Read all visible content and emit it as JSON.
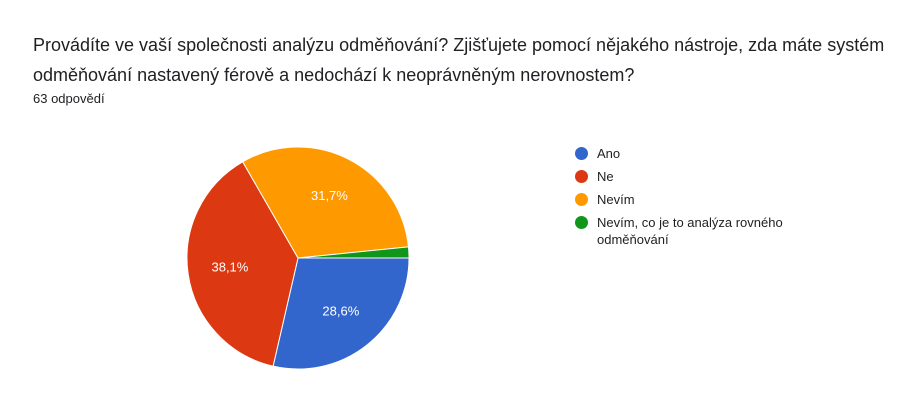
{
  "chart_data": {
    "type": "pie",
    "title": "Provádíte ve vaší společnosti analýzu odměňování? Zjišťujete pomocí nějakého nástroje, zda máte systém odměňování nastavený férově a nedochází k neoprávněným nerovnostem?",
    "subtitle": "63 odpovědí",
    "categories": [
      "Ano",
      "Ne",
      "Nevím",
      "Nevím, co je to analýza rovného odměňování"
    ],
    "values": [
      28.6,
      38.1,
      31.7,
      1.6
    ],
    "value_labels": [
      "28,6%",
      "38,1%",
      "31,7%",
      null
    ],
    "colors": [
      "#3366cc",
      "#dc3912",
      "#ff9900",
      "#109618"
    ]
  }
}
